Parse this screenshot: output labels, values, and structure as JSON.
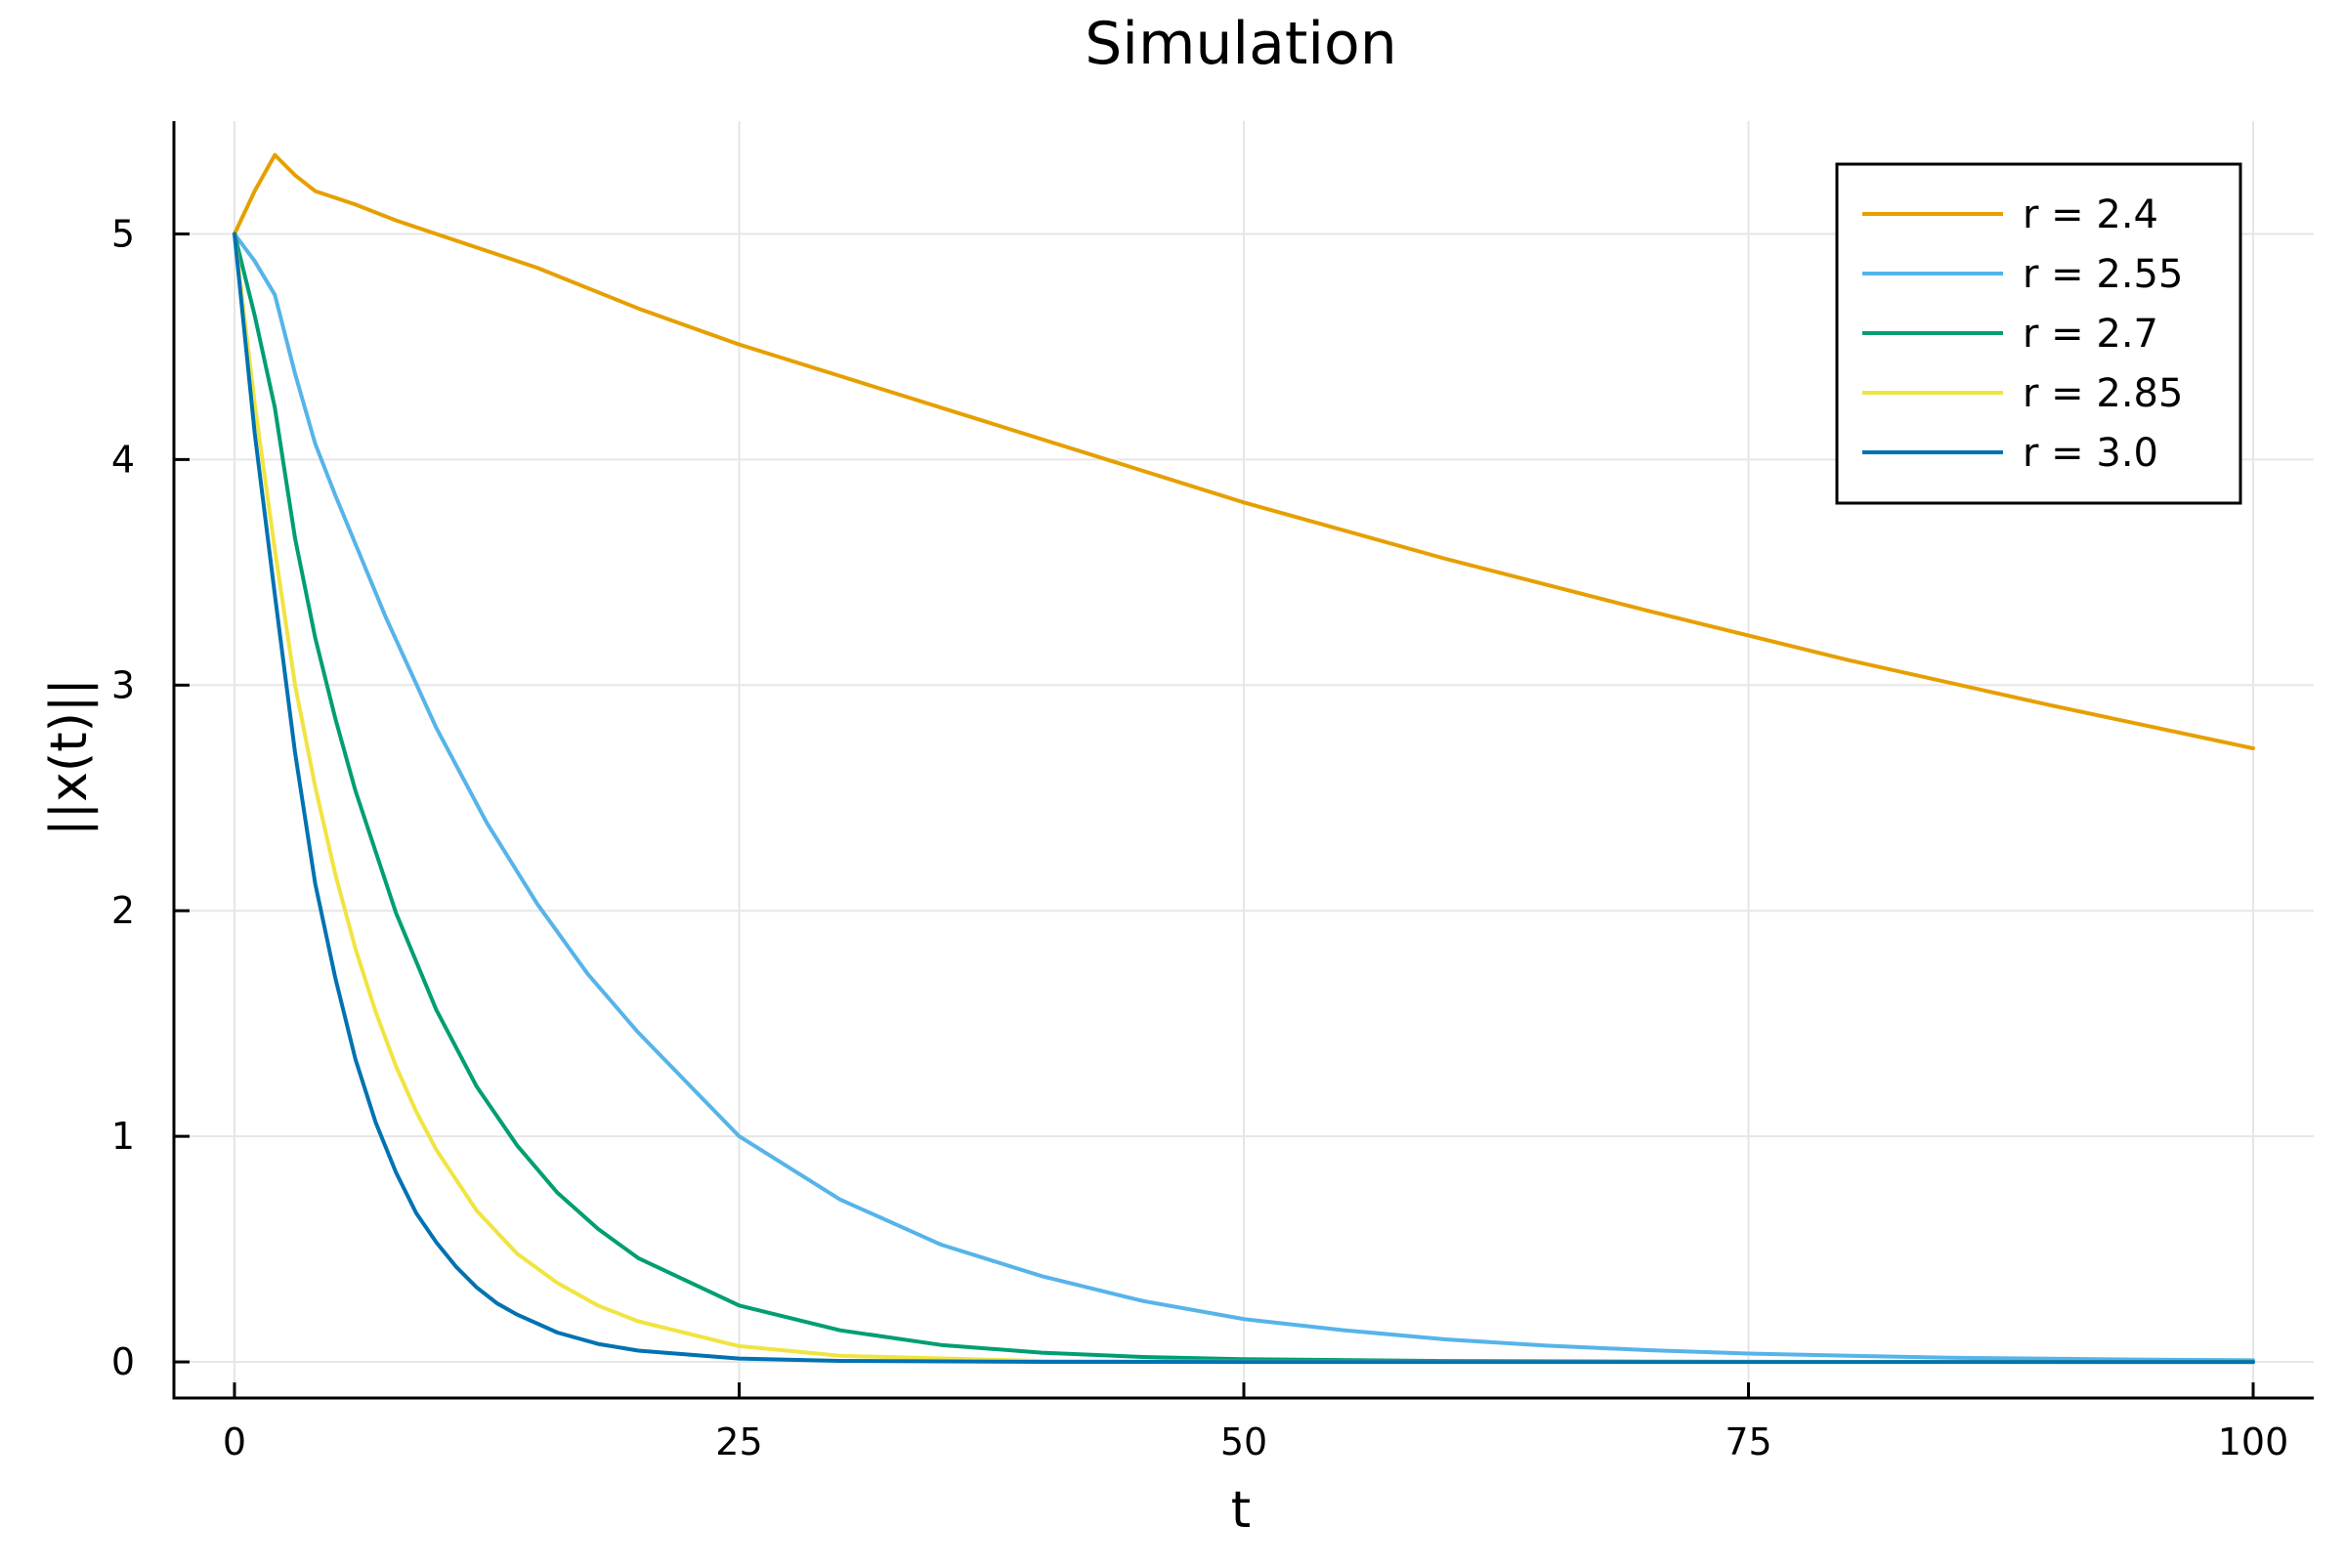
{
  "chart_data": {
    "type": "line",
    "title": "Simulation",
    "xlabel": "t",
    "ylabel": "||x(t)||",
    "xlim": [
      -3,
      103
    ],
    "ylim": [
      -0.16,
      5.5
    ],
    "xticks": [
      0,
      25,
      50,
      75,
      100
    ],
    "yticks": [
      0,
      1,
      2,
      3,
      4,
      5
    ],
    "grid": true,
    "legend_position": "top-right",
    "series": [
      {
        "name": "r = 2.4",
        "color": "#E69F00",
        "x": [
          0,
          1,
          2,
          3,
          4,
          5,
          6,
          8,
          10,
          15,
          20,
          25,
          30,
          40,
          50,
          60,
          70,
          80,
          90,
          100
        ],
        "y": [
          5.0,
          5.19,
          5.35,
          5.26,
          5.19,
          5.16,
          5.13,
          5.06,
          5.0,
          4.85,
          4.67,
          4.51,
          4.37,
          4.09,
          3.81,
          3.56,
          3.33,
          3.11,
          2.91,
          2.72
        ]
      },
      {
        "name": "r = 2.55",
        "color": "#56B4E9",
        "x": [
          0,
          1,
          2,
          3,
          4,
          5,
          7.5,
          10,
          12.5,
          15,
          17.5,
          20,
          25,
          30,
          35,
          40,
          45,
          50,
          55,
          60,
          65,
          70,
          75,
          80,
          85,
          90,
          95,
          100
        ],
        "y": [
          5.0,
          4.88,
          4.73,
          4.38,
          4.07,
          3.84,
          3.3,
          2.81,
          2.39,
          2.03,
          1.72,
          1.46,
          1.0,
          0.72,
          0.52,
          0.38,
          0.27,
          0.19,
          0.14,
          0.1,
          0.072,
          0.052,
          0.037,
          0.027,
          0.019,
          0.014,
          0.01,
          0.007
        ]
      },
      {
        "name": "r = 2.7",
        "color": "#009E73",
        "x": [
          0,
          1,
          2,
          3,
          4,
          5,
          6,
          8,
          10,
          12,
          14,
          16,
          18,
          20,
          25,
          30,
          35,
          40,
          45,
          50,
          60,
          70,
          80,
          100
        ],
        "y": [
          5.0,
          4.64,
          4.23,
          3.65,
          3.21,
          2.85,
          2.53,
          1.99,
          1.56,
          1.22,
          0.96,
          0.75,
          0.59,
          0.46,
          0.25,
          0.14,
          0.075,
          0.041,
          0.022,
          0.012,
          0.004,
          0.0012,
          0.0004,
          0.0
        ]
      },
      {
        "name": "r = 2.85",
        "color": "#F0E442",
        "x": [
          0,
          1,
          2,
          3,
          4,
          5,
          6,
          7,
          8,
          9,
          10,
          12,
          14,
          16,
          18,
          20,
          25,
          30,
          40,
          50,
          100
        ],
        "y": [
          5.0,
          4.25,
          3.6,
          3.0,
          2.55,
          2.16,
          1.83,
          1.55,
          1.31,
          1.11,
          0.94,
          0.67,
          0.48,
          0.35,
          0.25,
          0.18,
          0.07,
          0.027,
          0.004,
          0.0006,
          0.0
        ]
      },
      {
        "name": "r = 3.0",
        "color": "#0072B2",
        "x": [
          0,
          1,
          2,
          3,
          4,
          5,
          6,
          7,
          8,
          9,
          10,
          11,
          12,
          13,
          14,
          16,
          18,
          20,
          25,
          30,
          40,
          50,
          100
        ],
        "y": [
          5.0,
          4.12,
          3.4,
          2.7,
          2.12,
          1.7,
          1.34,
          1.06,
          0.84,
          0.66,
          0.53,
          0.42,
          0.33,
          0.26,
          0.21,
          0.13,
          0.08,
          0.05,
          0.015,
          0.0045,
          0.0004,
          0.0,
          0.0
        ]
      }
    ]
  }
}
